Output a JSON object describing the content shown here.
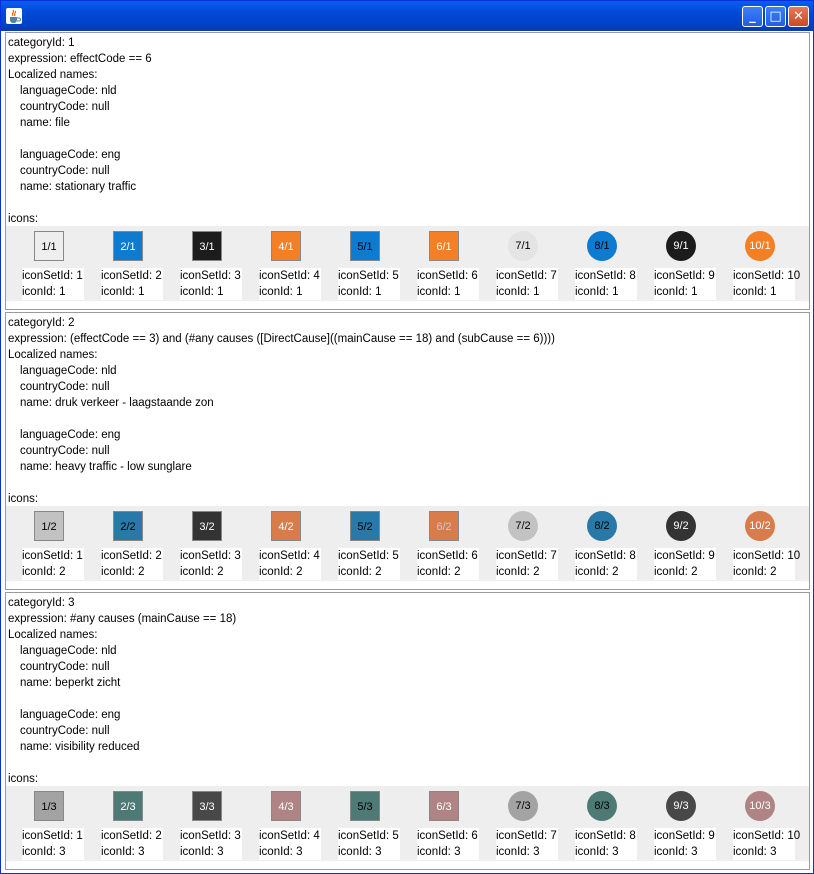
{
  "window": {
    "title": "",
    "minimize_label": "_",
    "maximize_label": "□",
    "close_label": "✕"
  },
  "labels": {
    "icons_label": "icons:",
    "localized_names_label": "Localized names:"
  },
  "categories": [
    {
      "lines": [
        "categoryId: 1",
        "expression: effectCode == 6",
        "Localized names:"
      ],
      "names": [
        [
          "languageCode: nld",
          "countryCode: null",
          "name: file"
        ],
        [
          "languageCode: eng",
          "countryCode: null",
          "name: stationary traffic"
        ]
      ],
      "icons": [
        {
          "label": "1/1",
          "shape": "square",
          "bg": "#eeeeee",
          "fg": "#000000",
          "set": "iconSetId: 1",
          "id": "iconId: 1"
        },
        {
          "label": "2/1",
          "shape": "square",
          "bg": "#0d7bd0",
          "fg": "#ffffff",
          "set": "iconSetId: 2",
          "id": "iconId: 1"
        },
        {
          "label": "3/1",
          "shape": "square",
          "bg": "#1c1c1c",
          "fg": "#ffffff",
          "set": "iconSetId: 3",
          "id": "iconId: 1"
        },
        {
          "label": "4/1",
          "shape": "square",
          "bg": "#f47f24",
          "fg": "#ffffff",
          "set": "iconSetId: 4",
          "id": "iconId: 1"
        },
        {
          "label": "5/1",
          "shape": "square",
          "bg": "#0d7bd0",
          "fg": "#000000",
          "set": "iconSetId: 5",
          "id": "iconId: 1"
        },
        {
          "label": "6/1",
          "shape": "square",
          "bg": "#f47f24",
          "fg": "#ffffff",
          "set": "iconSetId: 6",
          "id": "iconId: 1"
        },
        {
          "label": "7/1",
          "shape": "circle",
          "bg": "#e4e4e4",
          "fg": "#000000",
          "set": "iconSetId: 7",
          "id": "iconId: 1"
        },
        {
          "label": "8/1",
          "shape": "circle",
          "bg": "#0d7bd0",
          "fg": "#000000",
          "set": "iconSetId: 8",
          "id": "iconId: 1"
        },
        {
          "label": "9/1",
          "shape": "circle",
          "bg": "#1c1c1c",
          "fg": "#ffffff",
          "set": "iconSetId: 9",
          "id": "iconId: 1"
        },
        {
          "label": "10/1",
          "shape": "circle",
          "bg": "#f47f24",
          "fg": "#ffffff",
          "set": "iconSetId: 10",
          "id": "iconId: 1"
        }
      ]
    },
    {
      "lines": [
        "categoryId: 2",
        "expression: (effectCode == 3) and (#any causes ([DirectCause]((mainCause == 18) and (subCause == 6))))",
        "Localized names:"
      ],
      "names": [
        [
          "languageCode: nld",
          "countryCode: null",
          "name: druk verkeer - laagstaande zon"
        ],
        [
          "languageCode: eng",
          "countryCode: null",
          "name: heavy traffic - low sunglare"
        ]
      ],
      "icons": [
        {
          "label": "1/2",
          "shape": "square",
          "bg": "#c2c2c2",
          "fg": "#000000",
          "set": "iconSetId: 1",
          "id": "iconId: 2"
        },
        {
          "label": "2/2",
          "shape": "square",
          "bg": "#2878a8",
          "fg": "#000000",
          "set": "iconSetId: 2",
          "id": "iconId: 2"
        },
        {
          "label": "3/2",
          "shape": "square",
          "bg": "#333333",
          "fg": "#ffffff",
          "set": "iconSetId: 3",
          "id": "iconId: 2"
        },
        {
          "label": "4/2",
          "shape": "square",
          "bg": "#d97c4c",
          "fg": "#ffffff",
          "set": "iconSetId: 4",
          "id": "iconId: 2"
        },
        {
          "label": "5/2",
          "shape": "square",
          "bg": "#2878a8",
          "fg": "#000000",
          "set": "iconSetId: 5",
          "id": "iconId: 2"
        },
        {
          "label": "6/2",
          "shape": "square",
          "bg": "#d97c4c",
          "fg": "#cccccc",
          "set": "iconSetId: 6",
          "id": "iconId: 2"
        },
        {
          "label": "7/2",
          "shape": "circle",
          "bg": "#c2c2c2",
          "fg": "#000000",
          "set": "iconSetId: 7",
          "id": "iconId: 2"
        },
        {
          "label": "8/2",
          "shape": "circle",
          "bg": "#2878a8",
          "fg": "#000000",
          "set": "iconSetId: 8",
          "id": "iconId: 2"
        },
        {
          "label": "9/2",
          "shape": "circle",
          "bg": "#333333",
          "fg": "#ffffff",
          "set": "iconSetId: 9",
          "id": "iconId: 2"
        },
        {
          "label": "10/2",
          "shape": "circle",
          "bg": "#d97c4c",
          "fg": "#ffffff",
          "set": "iconSetId: 10",
          "id": "iconId: 2"
        }
      ]
    },
    {
      "lines": [
        "categoryId: 3",
        "expression: #any causes (mainCause == 18)",
        "Localized names:"
      ],
      "names": [
        [
          "languageCode: nld",
          "countryCode: null",
          "name: beperkt zicht"
        ],
        [
          "languageCode: eng",
          "countryCode: null",
          "name: visibility reduced"
        ]
      ],
      "icons": [
        {
          "label": "1/3",
          "shape": "square",
          "bg": "#a3a3a3",
          "fg": "#000000",
          "set": "iconSetId: 1",
          "id": "iconId: 3"
        },
        {
          "label": "2/3",
          "shape": "square",
          "bg": "#4e7a76",
          "fg": "#ffffff",
          "set": "iconSetId: 2",
          "id": "iconId: 3"
        },
        {
          "label": "3/3",
          "shape": "square",
          "bg": "#484848",
          "fg": "#ffffff",
          "set": "iconSetId: 3",
          "id": "iconId: 3"
        },
        {
          "label": "4/3",
          "shape": "square",
          "bg": "#b08484",
          "fg": "#ffffff",
          "set": "iconSetId: 4",
          "id": "iconId: 3"
        },
        {
          "label": "5/3",
          "shape": "square",
          "bg": "#4e7a76",
          "fg": "#000000",
          "set": "iconSetId: 5",
          "id": "iconId: 3"
        },
        {
          "label": "6/3",
          "shape": "square",
          "bg": "#b08484",
          "fg": "#ffffff",
          "set": "iconSetId: 6",
          "id": "iconId: 3"
        },
        {
          "label": "7/3",
          "shape": "circle",
          "bg": "#a3a3a3",
          "fg": "#000000",
          "set": "iconSetId: 7",
          "id": "iconId: 3"
        },
        {
          "label": "8/3",
          "shape": "circle",
          "bg": "#4e7a76",
          "fg": "#000000",
          "set": "iconSetId: 8",
          "id": "iconId: 3"
        },
        {
          "label": "9/3",
          "shape": "circle",
          "bg": "#484848",
          "fg": "#ffffff",
          "set": "iconSetId: 9",
          "id": "iconId: 3"
        },
        {
          "label": "10/3",
          "shape": "circle",
          "bg": "#b08484",
          "fg": "#ffffff",
          "set": "iconSetId: 10",
          "id": "iconId: 3"
        }
      ]
    }
  ]
}
